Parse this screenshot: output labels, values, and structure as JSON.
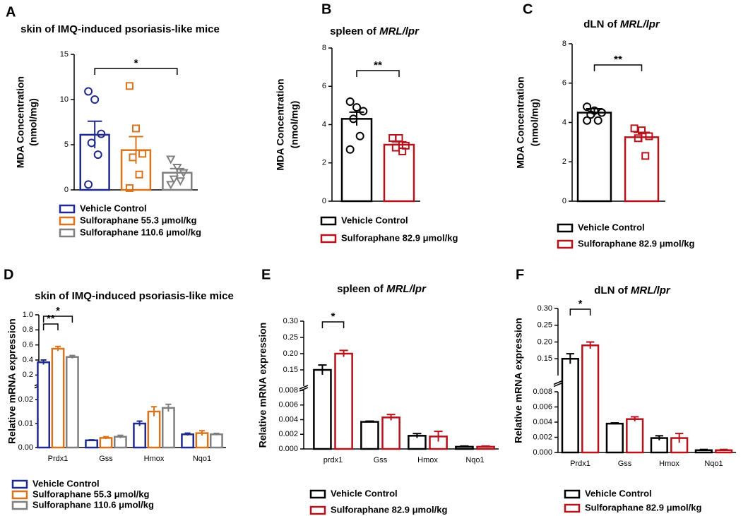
{
  "chart_data": [
    {
      "type": "bar",
      "panel": "A",
      "title": "skin of IMQ-induced psoriasis-like mice",
      "ylabel": [
        "MDA Concentration",
        "(nmol/mg)"
      ],
      "ylim": [
        0,
        15
      ],
      "yticks": [
        0,
        5,
        10,
        15
      ],
      "series": [
        {
          "name": "Vehicle Control",
          "color": "#1f2a8c",
          "marker": "circle",
          "values": [
            6.1
          ],
          "errors": [
            1.5
          ],
          "points": [
            [
              10.9,
              10.0,
              6.2,
              5.2,
              3.9,
              0.6
            ]
          ]
        },
        {
          "name": "Sulforaphane 55.3 μmol/kg",
          "color": "#d9731c",
          "marker": "square",
          "values": [
            4.4
          ],
          "errors": [
            1.5
          ],
          "points": [
            [
              11.5,
              6.8,
              4.0,
              3.6,
              1.7,
              0.2
            ]
          ]
        },
        {
          "name": "Sulforaphane 110.6 μmol/kg",
          "color": "#7f7f7f",
          "marker": "triangle",
          "values": [
            1.9
          ],
          "errors": [
            0.45
          ],
          "points": [
            [
              3.4,
              2.5,
              1.9,
              1.2,
              1.0,
              0.6
            ]
          ]
        }
      ],
      "significance": [
        {
          "from": 0,
          "to": 2,
          "label": "*"
        }
      ]
    },
    {
      "type": "bar",
      "panel": "B",
      "title": "spleen of ",
      "title_italic": "MRL/lpr",
      "ylabel": [
        "MDA Concentration",
        "(nmol/mg)"
      ],
      "ylim": [
        0,
        8
      ],
      "yticks": [
        0,
        2,
        4,
        6,
        8
      ],
      "series": [
        {
          "name": "Vehicle Control",
          "color": "#000000",
          "marker": "circle",
          "values": [
            4.3
          ],
          "errors": [
            0.35
          ],
          "points": [
            [
              5.2,
              4.9,
              4.7,
              4.3,
              3.4,
              2.7
            ]
          ]
        },
        {
          "name": "Sulforaphane 82.9 μmol/kg",
          "color": "#b5121b",
          "marker": "square",
          "values": [
            2.95
          ],
          "errors": [
            0.15
          ],
          "points": [
            [
              3.3,
              3.3,
              2.9,
              2.8,
              2.6
            ]
          ]
        }
      ],
      "significance": [
        {
          "from": 0,
          "to": 1,
          "label": "**"
        }
      ]
    },
    {
      "type": "bar",
      "panel": "C",
      "title": "dLN of ",
      "title_italic": "MRL/lpr",
      "ylabel": [
        "MDA Concentration",
        "(nmol/mg)"
      ],
      "ylim": [
        0,
        8
      ],
      "yticks": [
        0,
        2,
        4,
        6,
        8
      ],
      "series": [
        {
          "name": "Vehicle Control",
          "color": "#000000",
          "marker": "circle",
          "values": [
            4.5
          ],
          "errors": [
            0.2
          ],
          "points": [
            [
              4.8,
              4.6,
              4.5,
              4.4,
              4.1,
              4.1
            ]
          ]
        },
        {
          "name": "Sulforaphane 82.9 μmol/kg",
          "color": "#b5121b",
          "marker": "square",
          "values": [
            3.25
          ],
          "errors": [
            0.25
          ],
          "points": [
            [
              3.7,
              3.6,
              3.3,
              3.2,
              2.3
            ]
          ]
        }
      ],
      "significance": [
        {
          "from": 0,
          "to": 1,
          "label": "**"
        }
      ]
    },
    {
      "type": "bar",
      "panel": "D",
      "title": "skin of IMQ-induced psoriasis-like mice",
      "ylabel": [
        "Relative mRNA expression"
      ],
      "categories": [
        "Prdx1",
        "Gss",
        "Hmox",
        "Nqo1"
      ],
      "ylim": [
        [
          0,
          0.025
        ],
        [
          0.1,
          1.0
        ]
      ],
      "yticks": [
        [
          {
            "value": 0,
            "label": "0.00"
          },
          0.01,
          0.02
        ],
        [
          0.2,
          0.4,
          0.6,
          0.8,
          {
            "value": 1.0,
            "label": "1.0"
          }
        ]
      ],
      "series": [
        {
          "name": "Vehicle Control",
          "color": "#1f2a8c",
          "values": [
            0.37,
            0.003,
            0.01,
            0.0055
          ],
          "errors": [
            0.03,
            0.0002,
            0.001,
            0.0005
          ]
        },
        {
          "name": "Sulforaphane 55.3 μmol/kg",
          "color": "#d9731c",
          "values": [
            0.55,
            0.004,
            0.015,
            0.006
          ],
          "errors": [
            0.03,
            0.0005,
            0.002,
            0.001
          ]
        },
        {
          "name": "Sulforaphane 110.6 μmol/kg",
          "color": "#7f7f7f",
          "values": [
            0.44,
            0.0045,
            0.0165,
            0.0055
          ],
          "errors": [
            0.02,
            0.0006,
            0.0015,
            0.0004
          ]
        }
      ],
      "significance": [
        {
          "category": 0,
          "from": 0,
          "to": 1,
          "label": "**"
        },
        {
          "category": 0,
          "from": 0,
          "to": 2,
          "label": "*"
        }
      ]
    },
    {
      "type": "bar",
      "panel": "E",
      "title": "spleen of ",
      "title_italic": "MRL/lpr",
      "ylabel": [
        "Relative mRNA expression"
      ],
      "categories": [
        "prdx1",
        "Gss",
        "Hmox",
        "Nqo1"
      ],
      "ylim": [
        [
          0,
          0.008
        ],
        [
          0.1,
          0.3
        ]
      ],
      "yticks": [
        [
          {
            "value": 0,
            "label": "0.000"
          },
          0.002,
          0.004,
          0.006,
          0.008
        ],
        [
          0.15,
          {
            "value": 0.2,
            "label": "0.20"
          },
          0.25,
          {
            "value": 0.3,
            "label": "0.30"
          }
        ]
      ],
      "series": [
        {
          "name": "Vehicle Control",
          "color": "#000000",
          "values": [
            0.15,
            0.0037,
            0.0018,
            0.0003
          ],
          "errors": [
            0.015,
            0.0001,
            0.0003,
            0.0001
          ]
        },
        {
          "name": "Sulforaphane 82.9 μmol/kg",
          "color": "#b5121b",
          "values": [
            0.2,
            0.0043,
            0.0017,
            0.0003
          ],
          "errors": [
            0.01,
            0.0004,
            0.0007,
            0.0001
          ]
        }
      ],
      "significance": [
        {
          "category": 0,
          "from": 0,
          "to": 1,
          "label": "*"
        }
      ]
    },
    {
      "type": "bar",
      "panel": "F",
      "title": "dLN of ",
      "title_italic": "MRL/lpr",
      "ylabel": [
        "Relative mRNA expression"
      ],
      "categories": [
        "Prdx1",
        "Gss",
        "Hmox",
        "Nqo1"
      ],
      "ylim": [
        [
          0,
          0.008
        ],
        [
          0.1,
          0.3
        ]
      ],
      "yticks": [
        [
          {
            "value": 0,
            "label": "0.000"
          },
          0.002,
          0.004,
          0.006,
          0.008
        ],
        [
          0.15,
          {
            "value": 0.2,
            "label": "0.20"
          },
          0.25,
          {
            "value": 0.3,
            "label": "0.30"
          }
        ]
      ],
      "series": [
        {
          "name": "Vehicle Control",
          "color": "#000000",
          "values": [
            0.15,
            0.0038,
            0.0019,
            0.0003
          ],
          "errors": [
            0.015,
            0.0001,
            0.0003,
            0.0001
          ]
        },
        {
          "name": "Sulforaphane 82.9 μmol/kg",
          "color": "#b5121b",
          "values": [
            0.19,
            0.0044,
            0.0019,
            0.0003
          ],
          "errors": [
            0.01,
            0.0003,
            0.0006,
            0.0001
          ]
        }
      ],
      "significance": [
        {
          "category": 0,
          "from": 0,
          "to": 1,
          "label": "*"
        }
      ]
    }
  ]
}
